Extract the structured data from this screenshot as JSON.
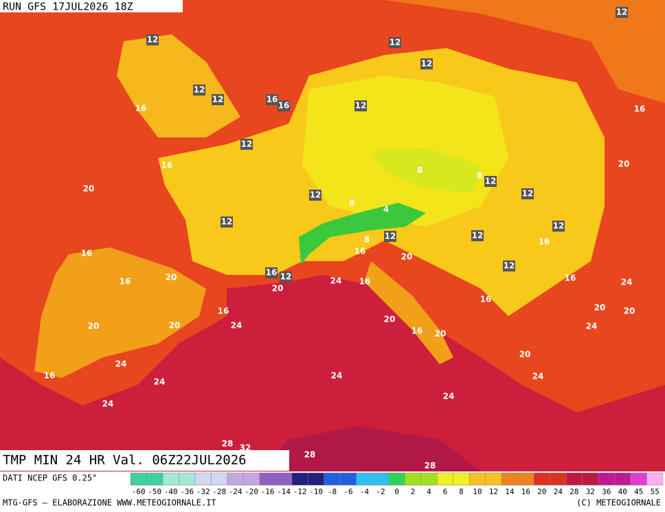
{
  "header": {
    "run": "RUN GFS 17JUL2026 18Z"
  },
  "title": "TMP MIN 24 HR Val. 06Z22JUL2026",
  "map_labels": [
    12,
    12,
    12,
    12,
    12,
    12,
    16,
    16,
    16,
    12,
    16,
    12,
    16,
    8,
    8,
    12,
    20,
    20,
    12,
    12,
    8,
    4,
    12,
    12,
    8,
    12,
    12,
    16,
    16,
    16,
    20,
    12,
    16,
    12,
    16,
    20,
    24,
    16,
    16,
    24,
    20,
    16,
    16,
    20,
    20,
    24,
    20,
    20,
    20,
    24,
    16,
    20,
    24,
    20,
    24,
    24,
    16,
    24,
    24,
    24,
    28,
    32,
    28,
    28
  ],
  "colorbar": {
    "source": "DATI NCEP GFS 0.25°",
    "labels": [
      -60,
      -50,
      -40,
      -36,
      -32,
      -28,
      -24,
      -20,
      -16,
      -14,
      -12,
      -10,
      -8,
      -6,
      -4,
      -2,
      0,
      2,
      4,
      6,
      8,
      10,
      12,
      14,
      16,
      20,
      24,
      28,
      32,
      36,
      40,
      45,
      55
    ]
  },
  "footer": {
    "credit": "MTG-GFS — ELABORAZIONE WWW.METEOGIORNALE.IT",
    "copyright": "(C) METEOGIORNALE"
  }
}
